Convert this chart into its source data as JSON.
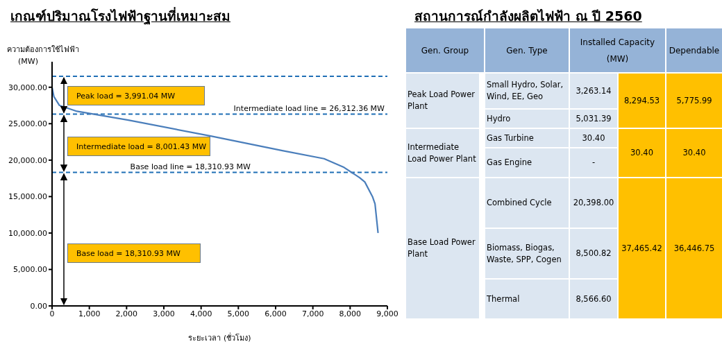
{
  "chart_data": [
    {
      "type": "line",
      "title": "เกณฑ์ปริมาณโรงไฟฟ้าฐานที่เหมาะสม",
      "xlabel": "ระยะเวลา (ชั่วโมง)",
      "ylabel": "ความต้องการใช้ไฟฟ้า\n(MW)",
      "series": [
        {
          "color": "#4a7ebb",
          "x": [
            0,
            50,
            200,
            667,
            2045,
            4260,
            6180,
            7300,
            7836,
            8255,
            8395,
            8600,
            8668,
            8750
          ],
          "values": [
            30000,
            28700,
            27500,
            26700,
            25500,
            23300,
            21300,
            20200,
            19000,
            17600,
            17000,
            15000,
            14000,
            10000
          ]
        }
      ],
      "marker": "none",
      "xlim": [
        0,
        9000
      ],
      "xticks": [
        0,
        {
          "value": 1000,
          "label": "1,000"
        },
        {
          "value": 2000,
          "label": "2,000"
        },
        {
          "value": 3000,
          "label": "3,000"
        },
        {
          "value": 4000,
          "label": "4,000"
        },
        {
          "value": 5000,
          "label": "5,000"
        },
        {
          "value": 6000,
          "label": "6,000"
        },
        {
          "value": 7000,
          "label": "7,000"
        },
        {
          "value": 8000,
          "label": "8,000"
        },
        {
          "value": 9000,
          "label": "9,000"
        }
      ],
      "ylim": [
        0,
        33500
      ],
      "yticks": [
        {
          "value": 0,
          "label": "0.00"
        },
        {
          "value": 5000,
          "label": "5,000.00"
        },
        {
          "value": 10000,
          "label": "10,000.00"
        },
        {
          "value": 15000,
          "label": "15,000.00"
        },
        {
          "value": 20000,
          "label": "20,000.00"
        },
        {
          "value": 25000,
          "label": "25,000.00"
        },
        {
          "value": 30000,
          "label": "30,000.00"
        }
      ],
      "ref_lines": [
        {
          "axis": "y",
          "value": 31500,
          "color": "#1f6fb5",
          "line_style": "dashed"
        },
        {
          "axis": "y",
          "value": 26312.36,
          "label": "Intermediate load line = 26,312.36 MW",
          "color": "#1f6fb5",
          "line_style": "dashed"
        },
        {
          "axis": "y",
          "value": 18310.93,
          "label": "Base load line = 18,310.93 MW",
          "color": "#1f6fb5",
          "line_style": "dashed"
        }
      ],
      "annotations": [
        "Peak load = 3,991.04 MW",
        "Intermediate load = 8,001.43 MW",
        "Base load = 18,310.93 MW"
      ]
    },
    {
      "type": "other",
      "title": "สถานการณ์กำลังผลิตไฟฟ้า ณ ปี 2560",
      "annotations": [
        "Gen. Group",
        "Gen. Type",
        "Installed Capacity (MW)",
        "Dependable",
        "Peak Load Power Plant",
        "Small Hydro, Solar, Wind, EE, Geo",
        "3,263.14",
        "8,294.53",
        "5,775.99",
        "Hydro",
        "5,031.39",
        "Intermediate Load Power Plant",
        "Gas Turbine",
        "30.40",
        "30.40",
        "30.40",
        "Gas Engine",
        "-",
        "Base Load Power Plant",
        "Combined Cycle",
        "20,398.00",
        "37,465.42",
        "36,446.75",
        "Biomass, Biogas, Waste, SPP, Cogen",
        "8,500.82",
        "Thermal",
        "8,566.60"
      ]
    }
  ]
}
